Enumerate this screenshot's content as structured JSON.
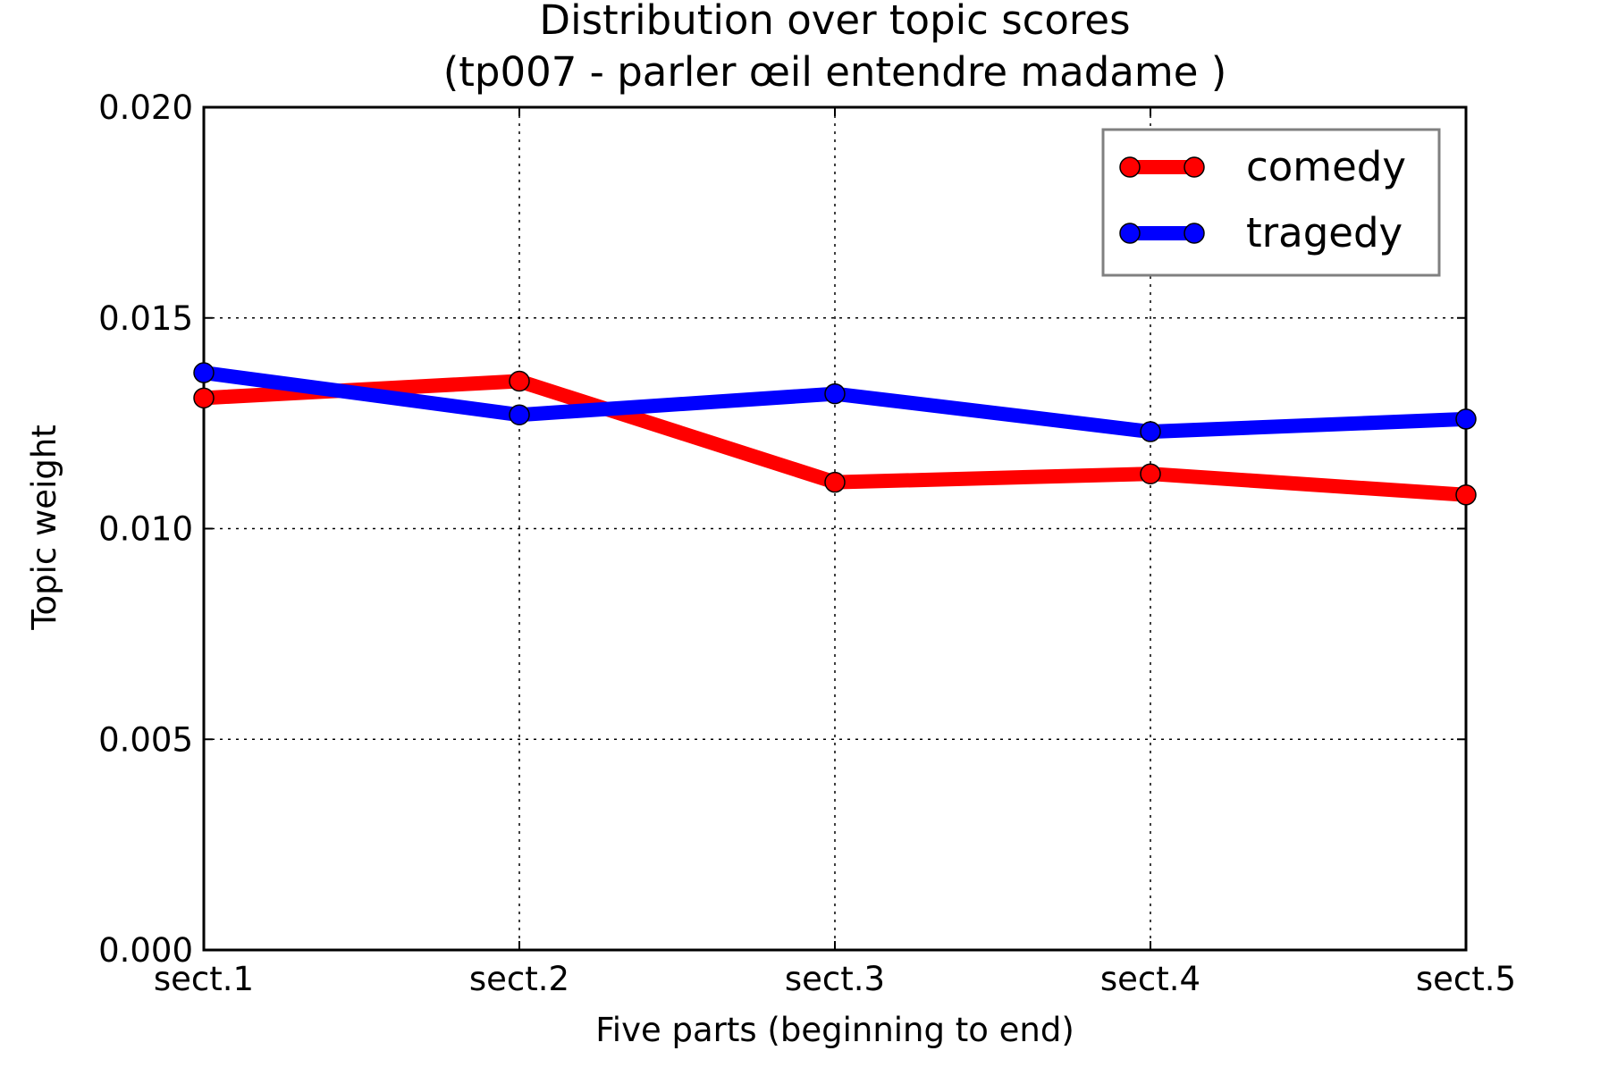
{
  "chart_data": {
    "type": "line",
    "title": "Distribution over topic scores",
    "subtitle": "(tp007 - parler œil entendre madame )",
    "xlabel": "Five parts (beginning to end)",
    "ylabel": "Topic weight",
    "categories": [
      "sect.1",
      "sect.2",
      "sect.3",
      "sect.4",
      "sect.5"
    ],
    "ylim": [
      0.0,
      0.02
    ],
    "yticks": [
      "0.000",
      "0.005",
      "0.010",
      "0.015",
      "0.020"
    ],
    "grid": true,
    "legend_position": "top-right",
    "series": [
      {
        "name": "comedy",
        "color": "#ff0000",
        "values": [
          0.0131,
          0.0135,
          0.0111,
          0.0113,
          0.0108
        ]
      },
      {
        "name": "tragedy",
        "color": "#0000ff",
        "values": [
          0.0137,
          0.0127,
          0.0132,
          0.0123,
          0.0126
        ]
      }
    ]
  }
}
